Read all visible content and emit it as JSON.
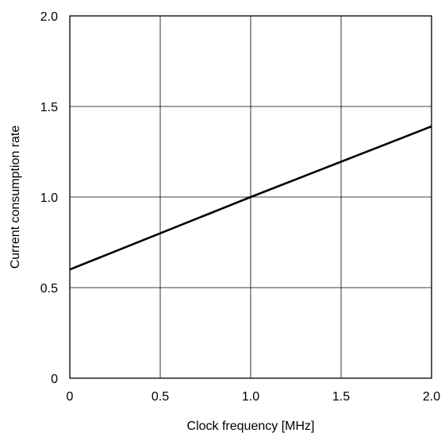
{
  "chart_data": {
    "type": "line",
    "title": "",
    "xlabel": "Clock frequency [MHz]",
    "ylabel": "Current consumption rate",
    "xlim": [
      0,
      2.0
    ],
    "ylim": [
      0,
      2.0
    ],
    "x_ticks": [
      "0",
      "0.5",
      "1.0",
      "1.5",
      "2.0"
    ],
    "y_ticks": [
      "0",
      "0.5",
      "1.0",
      "1.5",
      "2.0"
    ],
    "x_tick_values": [
      0,
      0.5,
      1.0,
      1.5,
      2.0
    ],
    "y_tick_values": [
      0,
      0.5,
      1.0,
      1.5,
      2.0
    ],
    "grid": true,
    "legend": "none",
    "series": [
      {
        "x": [
          0,
          1.0,
          2.0
        ],
        "y": [
          0.6,
          1.0,
          1.39
        ],
        "color": "#000000"
      }
    ]
  }
}
